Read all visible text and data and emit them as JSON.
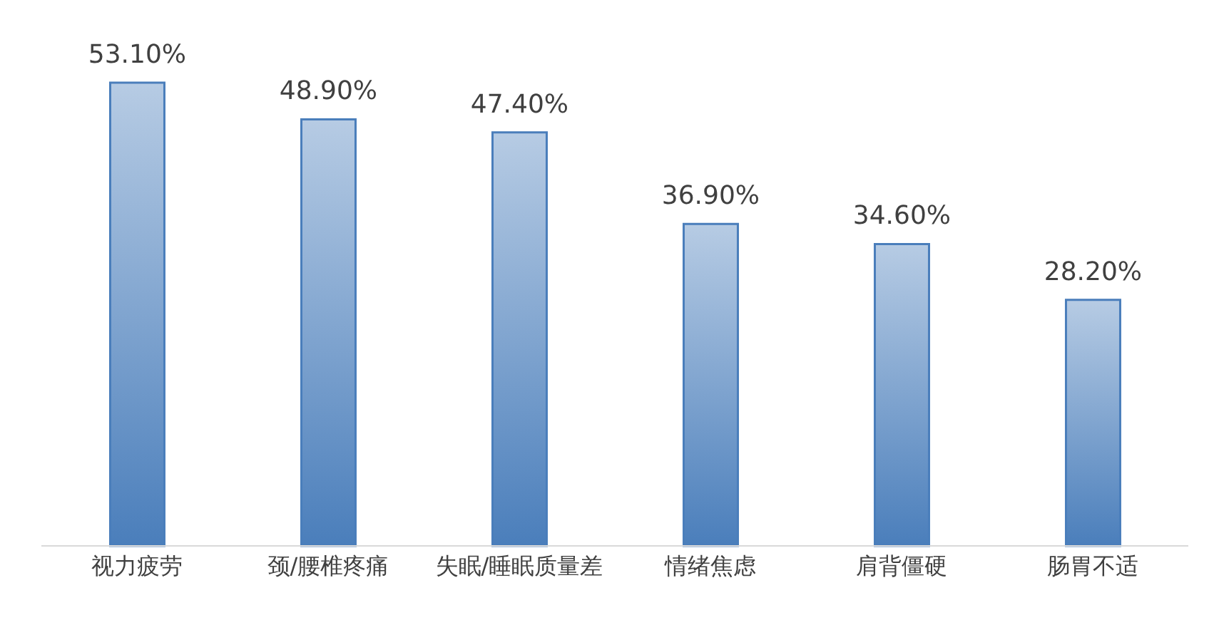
{
  "chart_data": {
    "type": "bar",
    "categories": [
      "视力疲劳",
      "颈/腰椎疼痛",
      "失眠/睡眠质量差",
      "情绪焦虑",
      "肩背僵硬",
      "肠胃不适"
    ],
    "values": [
      53.1,
      48.9,
      47.4,
      36.9,
      34.6,
      28.2
    ],
    "value_labels": [
      "53.10%",
      "48.90%",
      "47.40%",
      "36.90%",
      "34.60%",
      "28.20%"
    ],
    "color": "#4a7ebb",
    "grid": false,
    "legend": false
  }
}
